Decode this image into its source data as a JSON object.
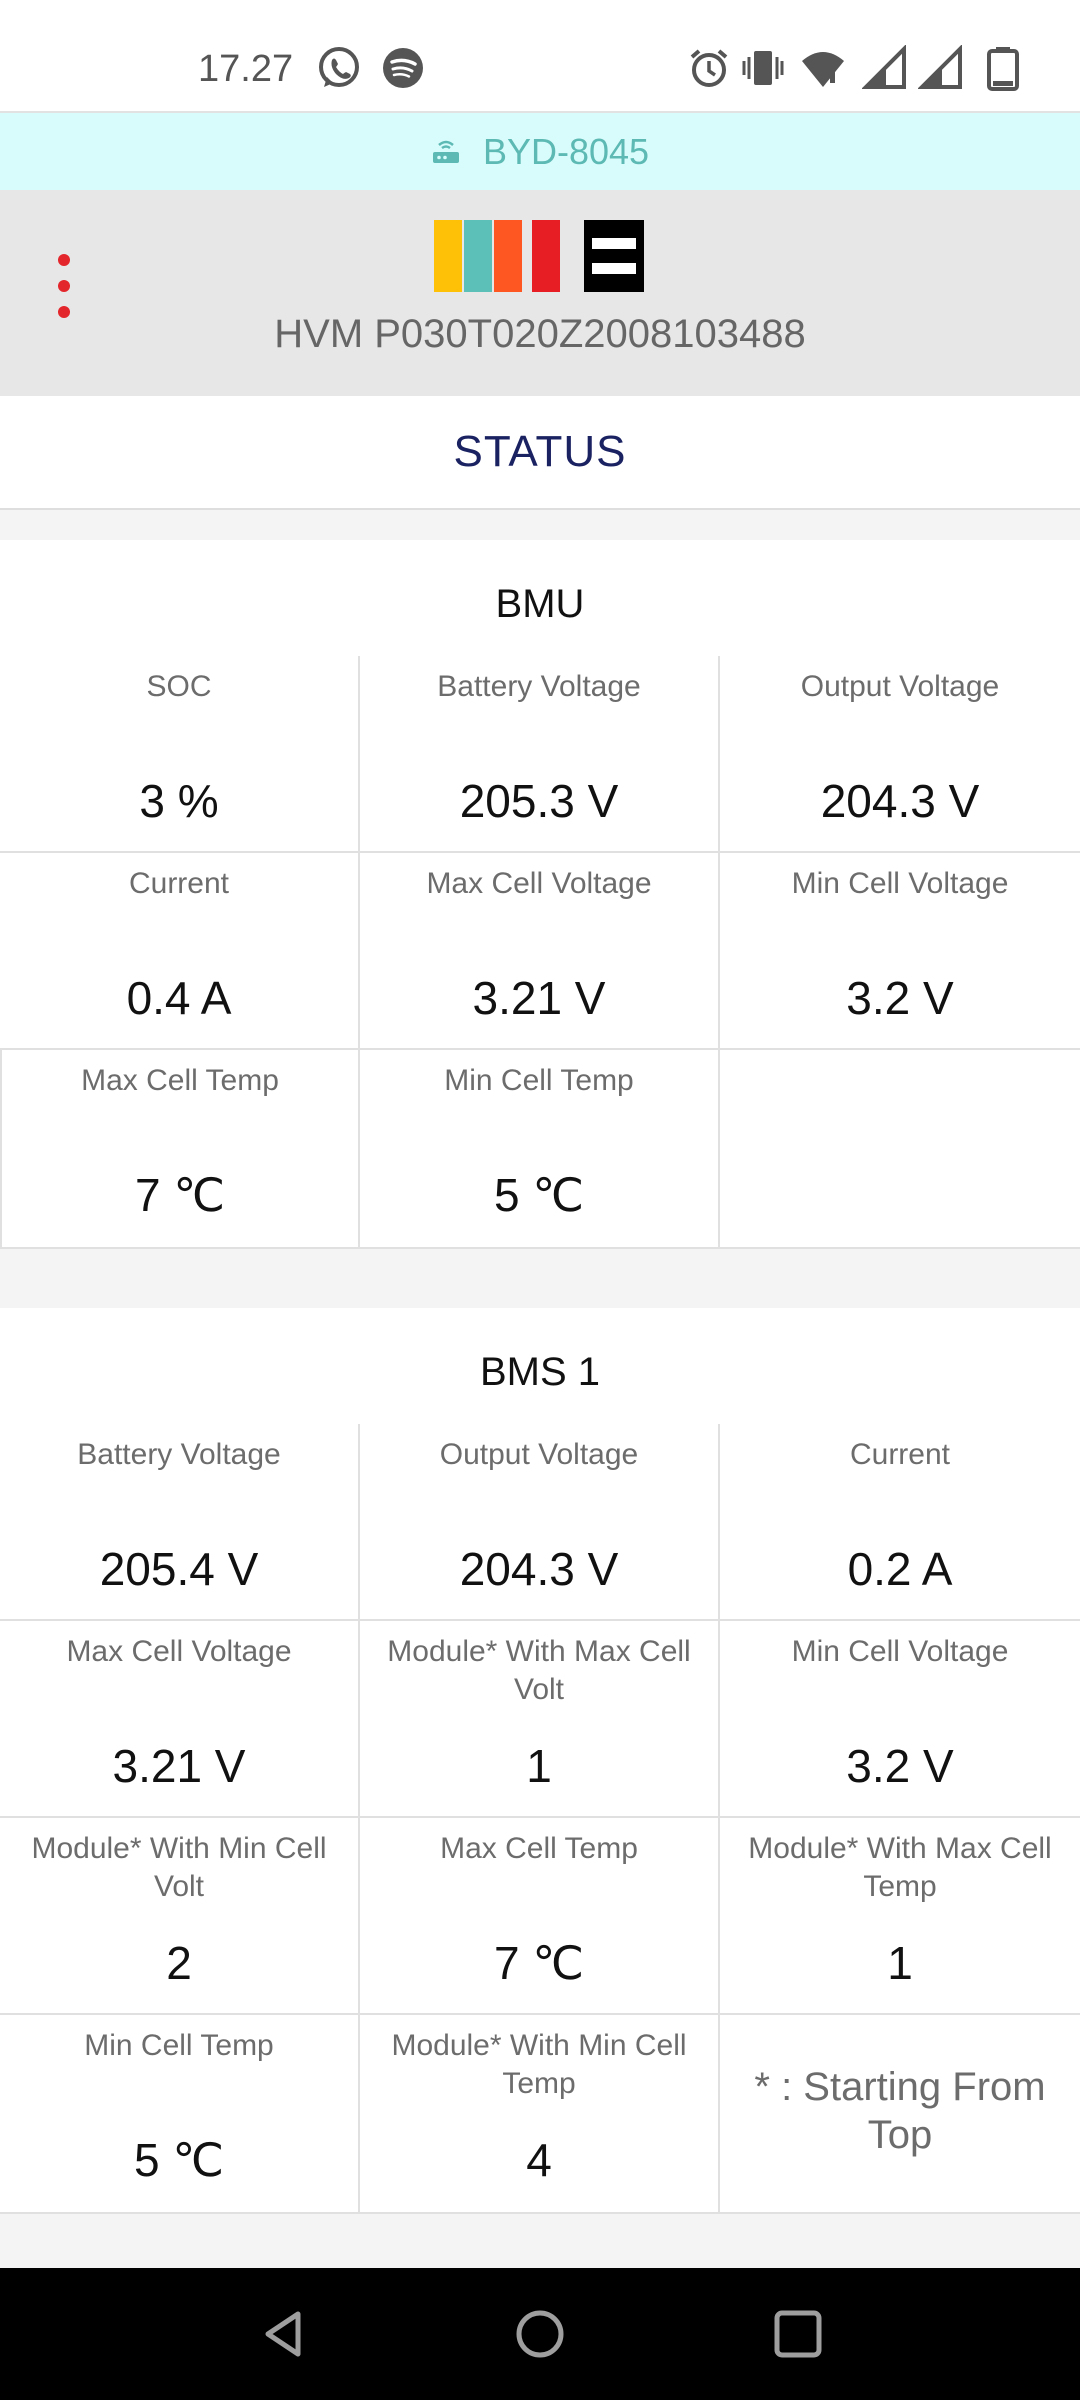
{
  "status_bar": {
    "time": "17.27",
    "left_icons": [
      "whatsapp-icon",
      "spotify-icon"
    ],
    "right_icons": [
      "alarm-icon",
      "vibrate-icon",
      "wifi-icon",
      "signal-icon",
      "signal-icon",
      "battery-icon"
    ]
  },
  "wifi": {
    "network_name": "BYD-8045"
  },
  "header": {
    "device_id": "HVM P030T020Z2008103488",
    "logo_colors": [
      "#ffc107",
      "#5cbfb8",
      "#ff5722",
      "#e81e25",
      "#000000"
    ]
  },
  "page_title": "STATUS",
  "bmu": {
    "title": "BMU",
    "cells": [
      {
        "label": "SOC",
        "value": "3 %"
      },
      {
        "label": "Battery Voltage",
        "value": "205.3 V"
      },
      {
        "label": "Output Voltage",
        "value": "204.3 V"
      },
      {
        "label": "Current",
        "value": "0.4 A"
      },
      {
        "label": "Max Cell Voltage",
        "value": "3.21 V"
      },
      {
        "label": "Min Cell Voltage",
        "value": "3.2 V"
      },
      {
        "label": "Max Cell Temp",
        "value": "7 ℃"
      },
      {
        "label": "Min Cell Temp",
        "value": "5 ℃"
      }
    ]
  },
  "bms1": {
    "title": "BMS 1",
    "cells": [
      {
        "label": "Battery Voltage",
        "value": "205.4 V"
      },
      {
        "label": "Output Voltage",
        "value": "204.3 V"
      },
      {
        "label": "Current",
        "value": "0.2 A"
      },
      {
        "label": "Max Cell Voltage",
        "value": "3.21 V"
      },
      {
        "label": "Module* With Max Cell Volt",
        "value": "1"
      },
      {
        "label": "Min Cell Voltage",
        "value": "3.2 V"
      },
      {
        "label": "Module* With Min Cell Volt",
        "value": "2"
      },
      {
        "label": "Max Cell Temp",
        "value": "7 ℃"
      },
      {
        "label": "Module* With Max Cell Temp",
        "value": "1"
      },
      {
        "label": "Min Cell Temp",
        "value": "5 ℃"
      },
      {
        "label": "Module* With Min Cell Temp",
        "value": "4"
      }
    ],
    "footnote": "* : Starting From Top"
  },
  "nav": {
    "buttons": [
      "back-icon",
      "home-icon",
      "recents-icon"
    ]
  }
}
